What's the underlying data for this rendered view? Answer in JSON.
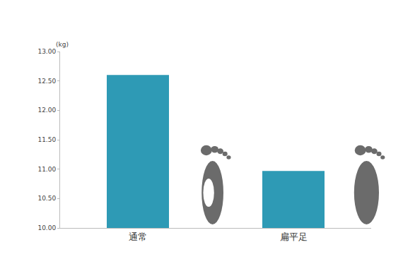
{
  "chart_data": {
    "type": "bar",
    "ylabel": "(kg)",
    "categories": [
      "通常",
      "扁平足"
    ],
    "values": [
      12.6,
      10.97
    ],
    "color": "#2e9ab5",
    "ylim": [
      10,
      13
    ],
    "yticks": [
      {
        "value": 10,
        "label": "10.00"
      },
      {
        "value": 10.5,
        "label": "10.50"
      },
      {
        "value": 11,
        "label": "11.00"
      },
      {
        "value": 11.5,
        "label": "11.50"
      },
      {
        "value": 12,
        "label": "12.00"
      },
      {
        "value": 12.5,
        "label": "12.50"
      },
      {
        "value": 13,
        "label": "13.00"
      }
    ],
    "grid": false
  }
}
